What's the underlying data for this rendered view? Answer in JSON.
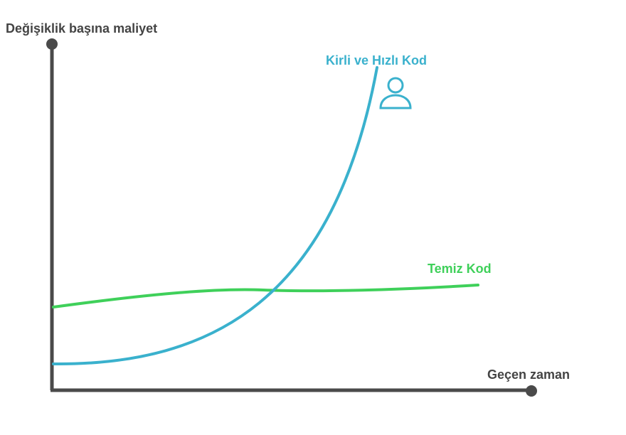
{
  "y_axis_label": "Değişiklik başına maliyet",
  "x_axis_label": "Geçen zaman",
  "curves": [
    {
      "label": "Kirli ve Hızlı Kod"
    },
    {
      "label": "Temiz Kod"
    }
  ]
}
